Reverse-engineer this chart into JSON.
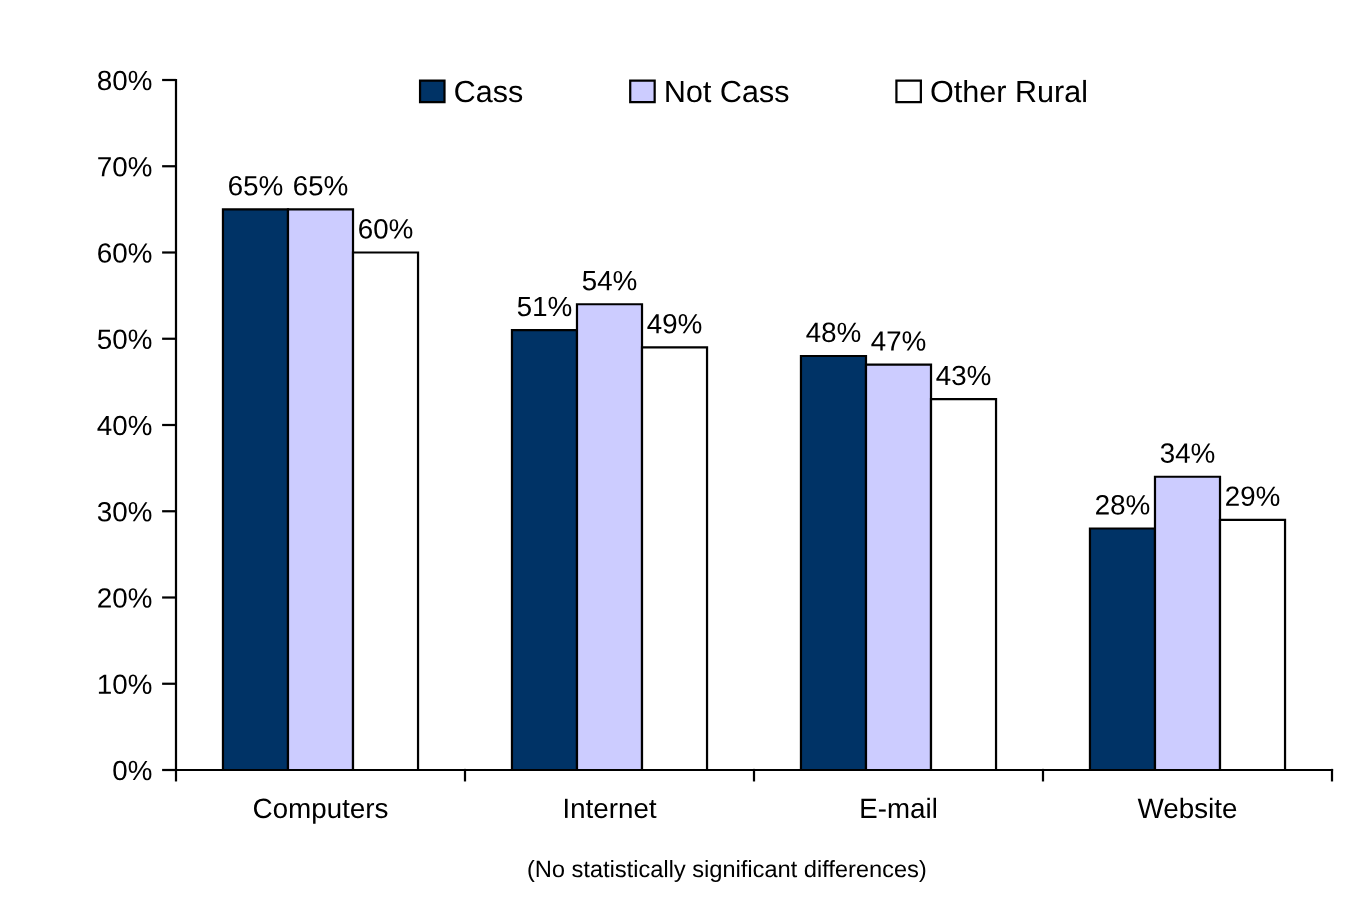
{
  "chart_data": {
    "type": "bar",
    "categories": [
      "Computers",
      "Internet",
      "E-mail",
      "Website"
    ],
    "series": [
      {
        "name": "Cass",
        "color": "#003366",
        "values": [
          65,
          51,
          48,
          28
        ],
        "value_labels": [
          "65%",
          "51%",
          "48%",
          "28%"
        ]
      },
      {
        "name": "Not Cass",
        "color": "#ccccff",
        "values": [
          65,
          54,
          47,
          34
        ],
        "value_labels": [
          "65%",
          "54%",
          "47%",
          "34%"
        ]
      },
      {
        "name": "Other Rural",
        "color": "#ffffff",
        "values": [
          60,
          49,
          43,
          29
        ],
        "value_labels": [
          "60%",
          "49%",
          "43%",
          "29%"
        ]
      }
    ],
    "ylim": [
      0,
      80
    ],
    "yticks": [
      {
        "value": 0,
        "label": "0%"
      },
      {
        "value": 10,
        "label": "10%"
      },
      {
        "value": 20,
        "label": "20%"
      },
      {
        "value": 30,
        "label": "30%"
      },
      {
        "value": 40,
        "label": "40%"
      },
      {
        "value": 50,
        "label": "50%"
      },
      {
        "value": 60,
        "label": "60%"
      },
      {
        "value": 70,
        "label": "70%"
      },
      {
        "value": 80,
        "label": "80%"
      }
    ],
    "grid": false,
    "legend": "top",
    "annotations": [
      "(No statistically significant differences)"
    ]
  }
}
